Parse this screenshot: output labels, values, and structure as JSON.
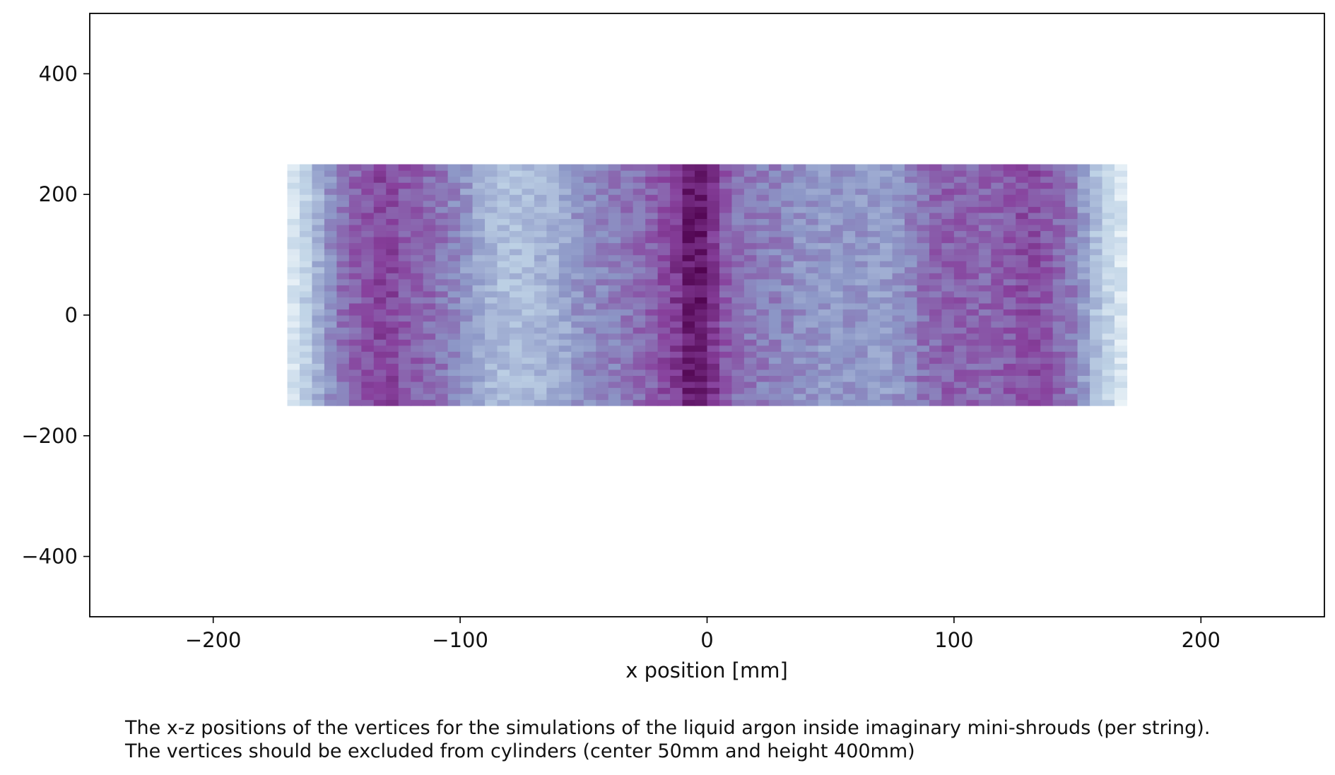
{
  "chart_data": {
    "type": "heatmap",
    "title": "",
    "xlabel": "x position [mm]",
    "ylabel": "",
    "xlim": [
      -250,
      250
    ],
    "ylim": [
      -500,
      500
    ],
    "x_ticks": [
      -200,
      -100,
      0,
      100,
      200
    ],
    "x_tick_labels": [
      "−200",
      "−100",
      "0",
      "100",
      "200"
    ],
    "y_ticks": [
      400,
      200,
      0,
      -200,
      -400
    ],
    "y_tick_labels": [
      "400",
      "200",
      "0",
      "−200",
      "−400"
    ],
    "colormap": "BuPu",
    "colormap_colors": [
      "#f7fcfd",
      "#bfd3e6",
      "#8c96c6",
      "#88419d",
      "#4d004b"
    ],
    "grid": false,
    "legend": "none",
    "colorbar": false,
    "filled_region": {
      "x_range": [
        -170,
        170
      ],
      "z_range": [
        -150,
        250
      ]
    },
    "bin_width_x": 5,
    "bin_height_z": 10,
    "density_profile_x": [
      [
        -170,
        0.08
      ],
      [
        -165,
        0.2
      ],
      [
        -160,
        0.32
      ],
      [
        -155,
        0.45
      ],
      [
        -150,
        0.58
      ],
      [
        -140,
        0.68
      ],
      [
        -130,
        0.75
      ],
      [
        -120,
        0.66
      ],
      [
        -110,
        0.62
      ],
      [
        -100,
        0.52
      ],
      [
        -90,
        0.38
      ],
      [
        -80,
        0.33
      ],
      [
        -70,
        0.36
      ],
      [
        -60,
        0.4
      ],
      [
        -50,
        0.52
      ],
      [
        -40,
        0.56
      ],
      [
        -30,
        0.6
      ],
      [
        -20,
        0.68
      ],
      [
        -10,
        0.82
      ],
      [
        -5,
        0.95
      ],
      [
        0,
        0.86
      ],
      [
        5,
        0.72
      ],
      [
        10,
        0.62
      ],
      [
        20,
        0.58
      ],
      [
        30,
        0.55
      ],
      [
        40,
        0.5
      ],
      [
        50,
        0.48
      ],
      [
        60,
        0.5
      ],
      [
        70,
        0.45
      ],
      [
        80,
        0.52
      ],
      [
        90,
        0.63
      ],
      [
        100,
        0.66
      ],
      [
        110,
        0.64
      ],
      [
        120,
        0.66
      ],
      [
        130,
        0.72
      ],
      [
        140,
        0.66
      ],
      [
        150,
        0.55
      ],
      [
        155,
        0.38
      ],
      [
        160,
        0.28
      ],
      [
        165,
        0.18
      ],
      [
        170,
        0.1
      ]
    ]
  },
  "caption": {
    "line1": "The x-z positions of the vertices for the simulations of the liquid argon inside imaginary mini-shrouds (per string).",
    "line2": "The vertices should be excluded from cylinders (center 50mm and height 400mm)"
  }
}
